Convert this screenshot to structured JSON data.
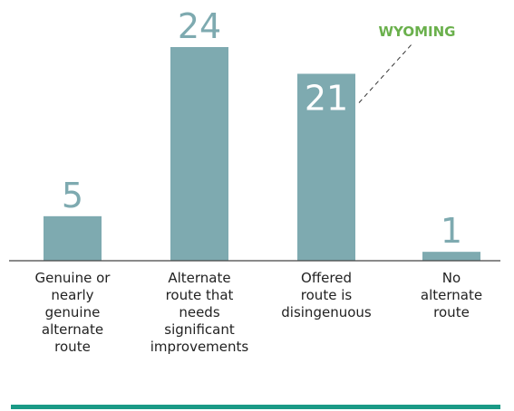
{
  "chart_data": {
    "type": "bar",
    "categories": [
      "Genuine or\nnearly\ngenuine\nalternate\nroute",
      "Alternate\nroute that\nneeds\nsignificant\nimprovements",
      "Offered\nroute is\ndisingenuous",
      "No\nalternate\nroute"
    ],
    "values": [
      5,
      24,
      21,
      1
    ],
    "color": "#7eaab0",
    "annotation": {
      "text": "WYOMING",
      "category_index": 2
    }
  }
}
